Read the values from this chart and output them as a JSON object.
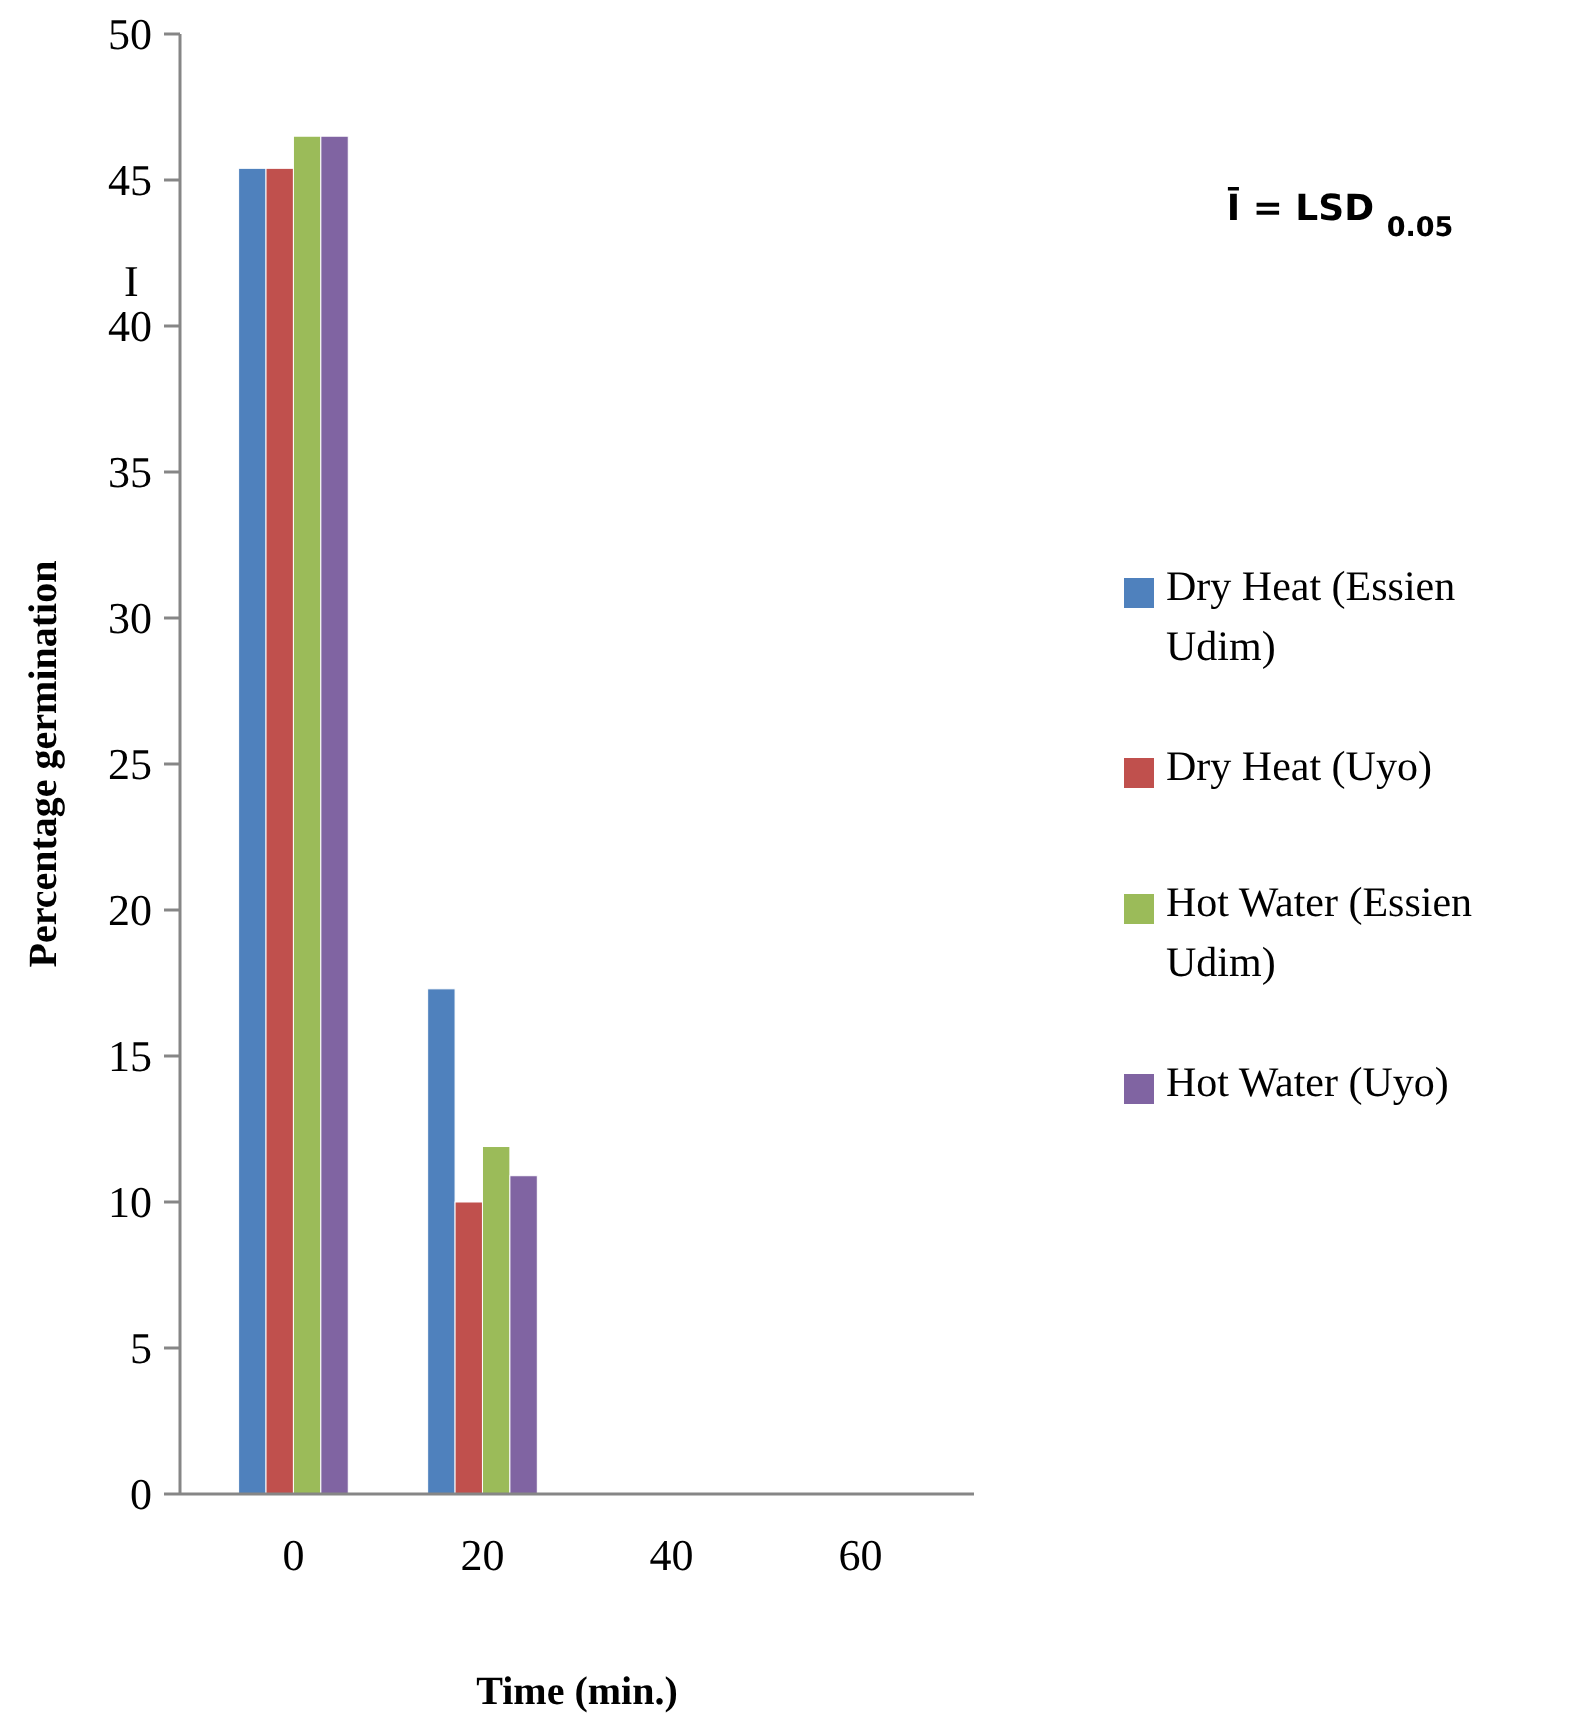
{
  "chart_data": {
    "type": "bar",
    "xlabel": "Time (min.)",
    "ylabel": "Percentage germination",
    "categories": [
      "0",
      "20",
      "40",
      "60"
    ],
    "series": [
      {
        "name": "Dry Heat (Essien Udim)",
        "color": "#4f81bd",
        "values": [
          45.4,
          17.3,
          0,
          0
        ]
      },
      {
        "name": "Dry Heat (Uyo)",
        "color": "#c0504d",
        "values": [
          45.4,
          10.0,
          0,
          0
        ]
      },
      {
        "name": "Hot Water (Essien Udim)",
        "color": "#9bbb59",
        "values": [
          46.5,
          11.9,
          0,
          0
        ]
      },
      {
        "name": "Hot Water (Uyo)",
        "color": "#8064a2",
        "values": [
          46.5,
          10.9,
          0,
          0
        ]
      }
    ],
    "ylim": [
      0,
      50
    ],
    "yticks": [
      0,
      5,
      10,
      15,
      20,
      25,
      30,
      35,
      40,
      45,
      50
    ],
    "grid": false,
    "legend": "right",
    "annotations": [
      "I",
      "Ī = LSD $_{0.05}$"
    ]
  }
}
